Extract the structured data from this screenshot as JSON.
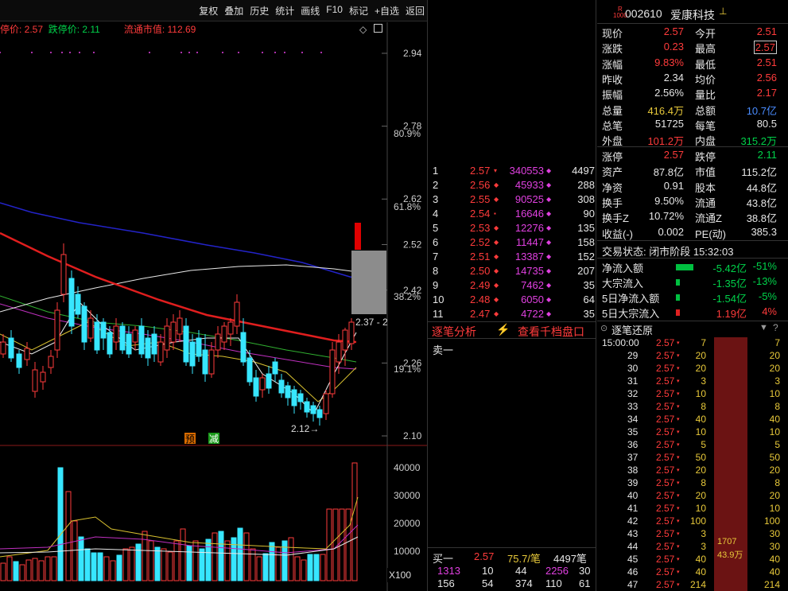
{
  "toolbar": {
    "items": [
      "复权",
      "叠加",
      "历史",
      "统计",
      "画线",
      "F10",
      "标记",
      "+自选",
      "返回"
    ]
  },
  "info": {
    "limit_up": "停价: 2.57",
    "limit_down": "跌停价: 2.11",
    "float_cap": "流通市值: 112.69"
  },
  "axis": {
    "price_ticks": [
      "2.94",
      "2.78",
      "2.62",
      "2.52",
      "2.42",
      "2.26",
      "2.10"
    ],
    "pct_ticks": [
      "80.9%",
      "61.8%",
      "38.2%",
      "19.1%"
    ],
    "vol_ticks": [
      "40000",
      "30000",
      "20000",
      "10000"
    ],
    "vol_unit": "X100",
    "range_label": "2.37 - 2",
    "low_label": "2.12→",
    "badge_yu": "预",
    "badge_jian": "减"
  },
  "order_book": {
    "rows": [
      {
        "n": "1",
        "price": "2.57",
        "qty": "340553",
        "cnt": "4497",
        "mark": "▾"
      },
      {
        "n": "2",
        "price": "2.56",
        "qty": "45933",
        "cnt": "288",
        "mark": "◆"
      },
      {
        "n": "3",
        "price": "2.55",
        "qty": "90525",
        "cnt": "308",
        "mark": "◆"
      },
      {
        "n": "4",
        "price": "2.54",
        "qty": "16646",
        "cnt": "90",
        "mark": "▪"
      },
      {
        "n": "5",
        "price": "2.53",
        "qty": "12276",
        "cnt": "135",
        "mark": "◆"
      },
      {
        "n": "6",
        "price": "2.52",
        "qty": "11447",
        "cnt": "158",
        "mark": "◆"
      },
      {
        "n": "7",
        "price": "2.51",
        "qty": "13387",
        "cnt": "152",
        "mark": "◆"
      },
      {
        "n": "8",
        "price": "2.50",
        "qty": "14735",
        "cnt": "207",
        "mark": "◆"
      },
      {
        "n": "9",
        "price": "2.49",
        "qty": "7462",
        "cnt": "35",
        "mark": "◆"
      },
      {
        "n": "10",
        "price": "2.48",
        "qty": "6050",
        "cnt": "64",
        "mark": "◆"
      },
      {
        "n": "11",
        "price": "2.47",
        "qty": "4722",
        "cnt": "35",
        "mark": "◆"
      }
    ],
    "tab_analysis": "逐笔分析",
    "tab_thousand": "查看千档盘口",
    "sell1": "卖一",
    "buy1_label": "买一",
    "buy1_price": "2.57",
    "buy1_avg": "75.7/笔",
    "buy1_count": "4497笔",
    "bottom1": [
      "1313",
      "10",
      "44",
      "2256",
      "30"
    ],
    "bottom2": [
      "156",
      "54",
      "374",
      "110",
      "61"
    ]
  },
  "quote": {
    "code": "002610",
    "name": "爱康科技",
    "badge": "R\n1000",
    "rows1": [
      [
        "现价",
        "2.57",
        "今开",
        "2.51"
      ],
      [
        "涨跌",
        "0.23",
        "最高",
        "2.57"
      ],
      [
        "涨幅",
        "9.83%",
        "最低",
        "2.51"
      ],
      [
        "昨收",
        "2.34",
        "均价",
        "2.56"
      ],
      [
        "振幅",
        "2.56%",
        "量比",
        "2.17"
      ],
      [
        "总量",
        "416.4万",
        "总额",
        "10.7亿"
      ],
      [
        "总笔",
        "51725",
        "每笔",
        "80.5"
      ],
      [
        "外盘",
        "101.2万",
        "内盘",
        "315.2万"
      ]
    ],
    "rows2": [
      [
        "涨停",
        "2.57",
        "跌停",
        "2.11"
      ],
      [
        "资产",
        "87.8亿",
        "市值",
        "115.2亿"
      ],
      [
        "净资",
        "0.91",
        "股本",
        "44.8亿"
      ],
      [
        "换手",
        "9.50%",
        "流通",
        "43.8亿"
      ],
      [
        "换手Z",
        "10.72%",
        "流通Z",
        "38.8亿"
      ],
      [
        "收益(-)",
        "0.002",
        "PE(动)",
        "385.3"
      ]
    ],
    "status": "交易状态: 闭市阶段 15:32:03",
    "flows": [
      [
        "净流入额",
        "-5.42亿",
        "-51%"
      ],
      [
        "大宗流入",
        "-1.35亿",
        "-13%"
      ],
      [
        "5日净流入额",
        "-1.54亿",
        "-5%"
      ],
      [
        "5日大宗流入",
        "1.19亿",
        "4%"
      ]
    ],
    "tick_title": "逐笔还原",
    "ticks": [
      [
        "15:00:00",
        "2.57",
        "7",
        "7"
      ],
      [
        "29",
        "2.57",
        "20",
        "20"
      ],
      [
        "30",
        "2.57",
        "20",
        "20"
      ],
      [
        "31",
        "2.57",
        "3",
        "3"
      ],
      [
        "32",
        "2.57",
        "10",
        "10"
      ],
      [
        "33",
        "2.57",
        "8",
        "8"
      ],
      [
        "34",
        "2.57",
        "40",
        "40"
      ],
      [
        "35",
        "2.57",
        "10",
        "10"
      ],
      [
        "36",
        "2.57",
        "5",
        "5"
      ],
      [
        "37",
        "2.57",
        "50",
        "50"
      ],
      [
        "38",
        "2.57",
        "20",
        "20"
      ],
      [
        "39",
        "2.57",
        "8",
        "8"
      ],
      [
        "40",
        "2.57",
        "20",
        "20"
      ],
      [
        "41",
        "2.57",
        "10",
        "10"
      ],
      [
        "42",
        "2.57",
        "100",
        "100"
      ],
      [
        "43",
        "2.57",
        "3",
        "30"
      ],
      [
        "44",
        "2.57",
        "3",
        "30"
      ],
      [
        "45",
        "2.57",
        "40",
        "40"
      ],
      [
        "46",
        "2.57",
        "40",
        "40"
      ],
      [
        "47",
        "2.57",
        "214",
        "214"
      ]
    ],
    "big_order": "1707",
    "big_order2": "43.9万"
  },
  "colors": {
    "up": "#ff3b3b",
    "down": "#37e6ff",
    "ma_blue": "#2323c8",
    "ma_red": "#e01e1e",
    "ma_white": "#e8e8e8"
  }
}
